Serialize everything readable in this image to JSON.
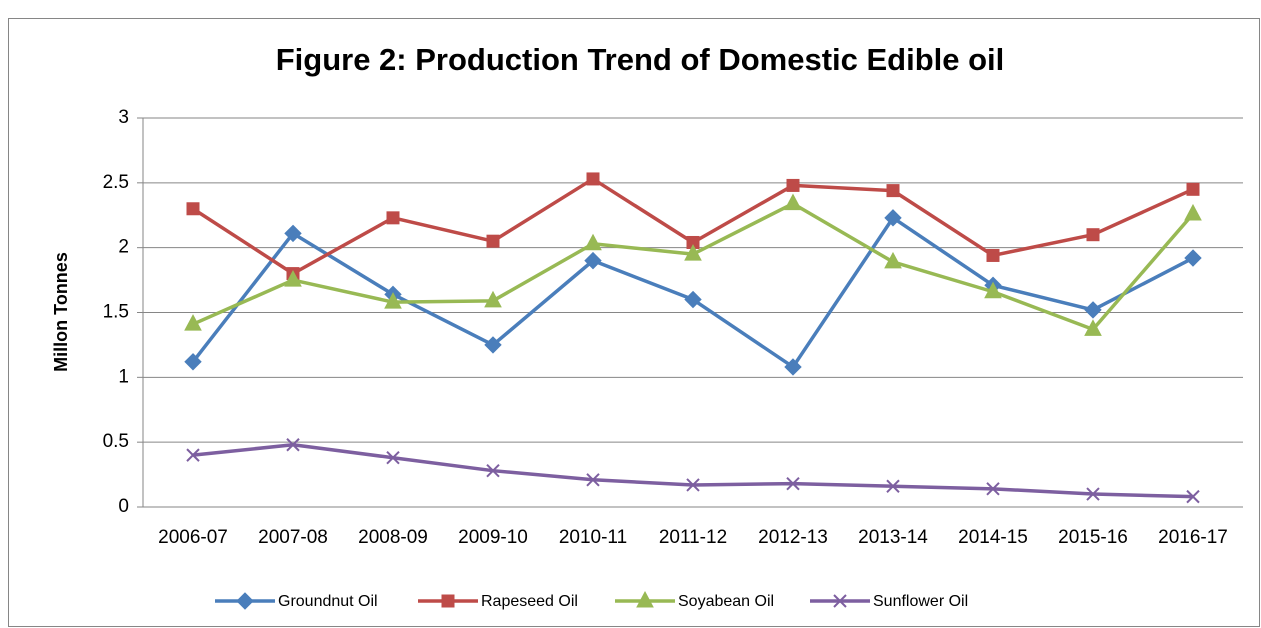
{
  "chart_data": {
    "type": "line",
    "title": "Figure 2: Production Trend of Domestic Edible oil",
    "y_label": "Millon Tonnes",
    "categories": [
      "2006-07",
      "2007-08",
      "2008-09",
      "2009-10",
      "2010-11",
      "2011-12",
      "2012-13",
      "2013-14",
      "2014-15",
      "2015-16",
      "2016-17"
    ],
    "series": [
      {
        "name": "Groundnut Oil",
        "color": "#4a7ebb",
        "marker": "diamond",
        "values": [
          1.12,
          2.11,
          1.64,
          1.25,
          1.9,
          1.6,
          1.08,
          2.23,
          1.71,
          1.52,
          1.92
        ]
      },
      {
        "name": "Rapeseed Oil",
        "color": "#be4b48",
        "marker": "square",
        "values": [
          2.3,
          1.8,
          2.23,
          2.05,
          2.53,
          2.04,
          2.48,
          2.44,
          1.94,
          2.1,
          2.45
        ]
      },
      {
        "name": "Soyabean Oil",
        "color": "#98b954",
        "marker": "triangle",
        "values": [
          1.41,
          1.75,
          1.58,
          1.59,
          2.03,
          1.95,
          2.34,
          1.89,
          1.66,
          1.37,
          2.26
        ]
      },
      {
        "name": "Sunflower Oil",
        "color": "#7d5fa0",
        "marker": "x",
        "values": [
          0.4,
          0.48,
          0.38,
          0.28,
          0.21,
          0.17,
          0.18,
          0.16,
          0.14,
          0.1,
          0.08
        ]
      }
    ],
    "ylim": [
      0,
      3
    ],
    "yticks": [
      0,
      0.5,
      1,
      1.5,
      2,
      2.5,
      3
    ],
    "grid": true,
    "legend": "bottom"
  }
}
